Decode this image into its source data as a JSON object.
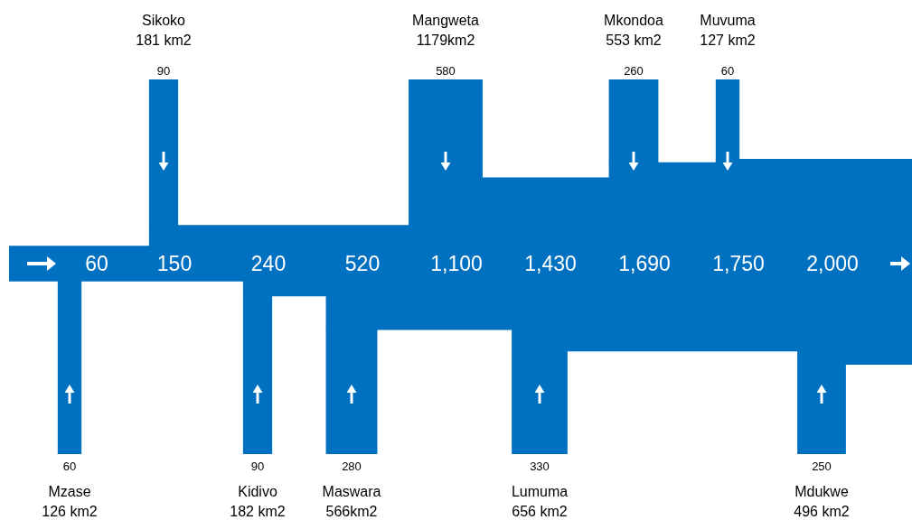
{
  "chart_data": {
    "type": "other",
    "categories": [
      "Mzase",
      "Sikoko",
      "Kidivo",
      "Maswara",
      "Mangweta",
      "Lumuma",
      "Mkondoa",
      "Muvuma",
      "Mdukwe"
    ],
    "annotations": [
      "126 km2",
      "181 km2",
      "182 km2",
      "566km2",
      "1179km2",
      "656 km2",
      "553 km2",
      "127 km2",
      "496 km2"
    ],
    "data_labels": true,
    "series": [
      {
        "type": "bar",
        "color": "#0070c0",
        "values": [
          null,
          90,
          null,
          null,
          580,
          null,
          260,
          60,
          null
        ]
      },
      {
        "type": "bar",
        "color": "#0070c0",
        "values": [
          60,
          null,
          90,
          280,
          null,
          330,
          null,
          null,
          250
        ]
      },
      {
        "type": "area",
        "color": "#0070c0",
        "values": [
          60,
          150,
          240,
          520,
          1100,
          1430,
          1690,
          1750,
          2000
        ],
        "value_labels": [
          "60",
          "150",
          "240",
          "520",
          "1,100",
          "1,430",
          "1,690",
          "1,750",
          "2,000"
        ]
      }
    ]
  }
}
